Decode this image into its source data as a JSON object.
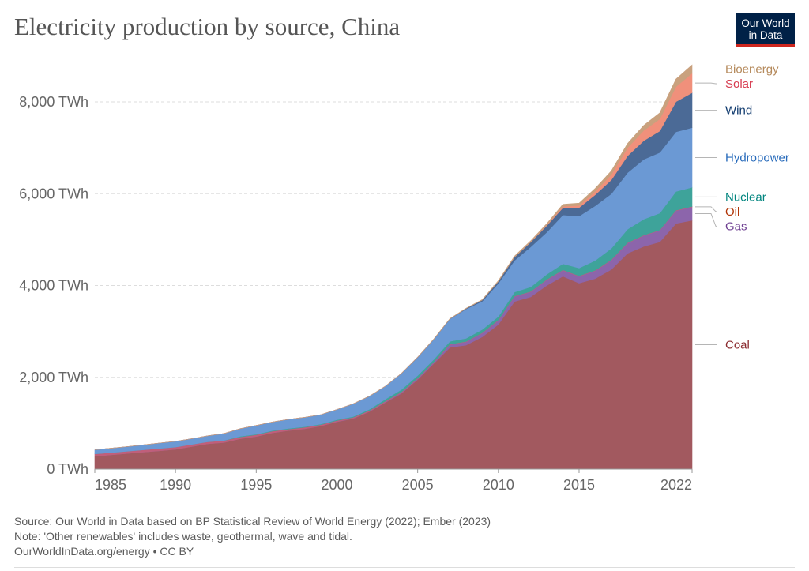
{
  "header": {
    "title": "Electricity production by source, China",
    "logo_line1": "Our World",
    "logo_line2": "in Data"
  },
  "footer": {
    "source": "Source: Our World in Data based on BP Statistical Review of World Energy (2022); Ember (2023)",
    "note": "Note: 'Other renewables' includes waste, geothermal, wave and tidal.",
    "credit": "OurWorldInData.org/energy • CC BY"
  },
  "chart_data": {
    "type": "area",
    "title": "Electricity production by source, China",
    "stacked": true,
    "x": [
      1985,
      1986,
      1987,
      1988,
      1989,
      1990,
      1991,
      1992,
      1993,
      1994,
      1995,
      1996,
      1997,
      1998,
      1999,
      2000,
      2001,
      2002,
      2003,
      2004,
      2005,
      2006,
      2007,
      2008,
      2009,
      2010,
      2011,
      2012,
      2013,
      2014,
      2015,
      2016,
      2017,
      2018,
      2019,
      2020,
      2021,
      2022
    ],
    "xlim": [
      1985,
      2022
    ],
    "ylim": [
      0,
      8800
    ],
    "x_ticks": [
      "1985",
      "1990",
      "1995",
      "2000",
      "2005",
      "2010",
      "2015",
      "2022"
    ],
    "x_tick_values": [
      1985,
      1990,
      1995,
      2000,
      2005,
      2010,
      2015,
      2022
    ],
    "y_ticks": [
      "0 TWh",
      "2,000 TWh",
      "4,000 TWh",
      "6,000 TWh",
      "8,000 TWh"
    ],
    "y_tick_values": [
      0,
      2000,
      4000,
      6000,
      8000
    ],
    "grid": true,
    "legend": "right, labels at series ends",
    "series": [
      {
        "name": "Coal",
        "color": "#a2595f",
        "label_color": "#8a2a2e",
        "values": [
          280,
          310,
          340,
          370,
          400,
          430,
          490,
          550,
          580,
          660,
          710,
          790,
          840,
          880,
          940,
          1030,
          1100,
          1250,
          1450,
          1650,
          1950,
          2300,
          2650,
          2700,
          2880,
          3150,
          3650,
          3750,
          4000,
          4200,
          4050,
          4150,
          4350,
          4700,
          4850,
          4950,
          5350,
          5420
        ]
      },
      {
        "name": "Gas",
        "color": "#8c65ab",
        "label_color": "#6d3e91",
        "values": [
          0,
          0,
          0,
          0,
          0,
          0,
          0,
          0,
          0,
          0,
          0,
          0,
          0,
          0,
          0,
          5,
          5,
          5,
          10,
          15,
          20,
          25,
          60,
          70,
          80,
          90,
          110,
          110,
          120,
          130,
          150,
          170,
          200,
          220,
          235,
          250,
          280,
          290
        ]
      },
      {
        "name": "Oil",
        "color": "#c05f7a",
        "label_color": "#b13507",
        "values": [
          50,
          50,
          50,
          50,
          50,
          50,
          48,
          45,
          43,
          40,
          38,
          35,
          33,
          30,
          28,
          25,
          22,
          20,
          20,
          18,
          15,
          12,
          12,
          10,
          10,
          10,
          10,
          10,
          10,
          10,
          10,
          10,
          10,
          10,
          10,
          10,
          10,
          10
        ]
      },
      {
        "name": "Nuclear",
        "color": "#3ea39a",
        "label_color": "#00847e",
        "values": [
          0,
          0,
          0,
          0,
          0,
          0,
          0,
          0,
          2,
          14,
          13,
          14,
          15,
          14,
          15,
          17,
          17,
          25,
          43,
          50,
          53,
          55,
          62,
          68,
          70,
          74,
          86,
          97,
          112,
          133,
          171,
          213,
          248,
          295,
          348,
          366,
          408,
          418
        ]
      },
      {
        "name": "Hydropower",
        "color": "#6b99d4",
        "label_color": "#286bbb",
        "values": [
          92,
          94,
          100,
          109,
          118,
          126,
          125,
          131,
          151,
          167,
          190,
          188,
          196,
          204,
          204,
          222,
          277,
          288,
          284,
          353,
          397,
          436,
          486,
          637,
          616,
          722,
          687,
          872,
          920,
          1064,
          1130,
          1193,
          1189,
          1232,
          1302,
          1322,
          1300,
          1300
        ]
      },
      {
        "name": "Wind",
        "color": "#4b6a96",
        "label_color": "#0f3a6e",
        "values": [
          0,
          0,
          0,
          0,
          0,
          0,
          0,
          0,
          0,
          0,
          0,
          0,
          0,
          0,
          0,
          0,
          0,
          0,
          0,
          1,
          2,
          4,
          6,
          15,
          27,
          45,
          74,
          104,
          142,
          158,
          186,
          241,
          304,
          366,
          406,
          467,
          656,
          760
        ]
      },
      {
        "name": "Solar",
        "color": "#f0907b",
        "label_color": "#d73c50",
        "values": [
          0,
          0,
          0,
          0,
          0,
          0,
          0,
          0,
          0,
          0,
          0,
          0,
          0,
          0,
          0,
          0,
          0,
          0,
          0,
          0,
          0,
          0,
          0,
          0,
          0,
          1,
          3,
          6,
          15,
          29,
          45,
          75,
          117,
          177,
          224,
          261,
          327,
          427
        ]
      },
      {
        "name": "Bioenergy",
        "color": "#c9a17e",
        "label_color": "#b58a5c",
        "values": [
          0,
          0,
          0,
          0,
          0,
          0,
          0,
          0,
          0,
          0,
          0,
          0,
          0,
          0,
          0,
          0,
          0,
          0,
          0,
          0,
          0,
          5,
          5,
          5,
          10,
          15,
          20,
          25,
          30,
          44,
          53,
          64,
          80,
          93,
          112,
          136,
          167,
          180
        ]
      }
    ]
  }
}
